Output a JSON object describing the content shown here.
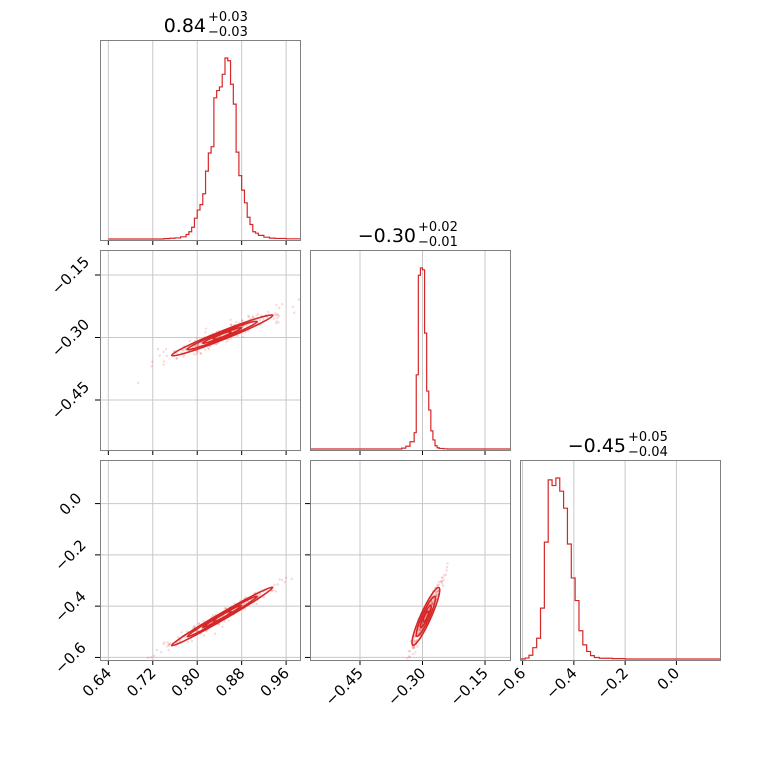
{
  "chart_data": {
    "type": "corner",
    "color": "#d62728",
    "grid": true,
    "params": [
      {
        "median": 0.84,
        "range": [
          0.625,
          0.985
        ],
        "ticks": [
          "0.64",
          "0.72",
          "0.80",
          "0.88",
          "0.96"
        ],
        "tickvals": [
          0.64,
          0.72,
          0.8,
          0.88,
          0.96
        ]
      },
      {
        "median": -0.3,
        "range": [
          -0.57,
          -0.09
        ],
        "ticks": [
          "−0.45",
          "−0.30",
          "−0.15"
        ],
        "tickvals": [
          -0.45,
          -0.3,
          -0.15
        ]
      },
      {
        "median": -0.45,
        "range": [
          -0.61,
          0.17
        ],
        "ticks": [
          "−0.6",
          "−0.4",
          "−0.2",
          "0.0"
        ],
        "tickvals": [
          -0.6,
          -0.4,
          -0.2,
          0.0
        ]
      }
    ],
    "titles": [
      {
        "main": "0.84",
        "plus": "+0.03",
        "minus": "−0.03"
      },
      {
        "main": "−0.30",
        "plus": "+0.02",
        "minus": "−0.01"
      },
      {
        "main": "−0.45",
        "plus": "+0.05",
        "minus": "−0.04"
      }
    ],
    "yticks": {
      "row1": {
        "labels": [
          "−0.15",
          "−0.30",
          "−0.45"
        ],
        "values": [
          -0.15,
          -0.3,
          -0.45
        ]
      },
      "row2": {
        "labels": [
          "0.0",
          "−0.2",
          "−0.4",
          "−0.6"
        ],
        "values": [
          0.0,
          -0.2,
          -0.4,
          -0.6
        ]
      }
    },
    "histograms": [
      {
        "param": 0,
        "bins": [
          0.64,
          0.66,
          0.68,
          0.7,
          0.72,
          0.74,
          0.75,
          0.76,
          0.77,
          0.78,
          0.785,
          0.79,
          0.795,
          0.8,
          0.805,
          0.81,
          0.815,
          0.82,
          0.825,
          0.83,
          0.835,
          0.84,
          0.845,
          0.85,
          0.855,
          0.86,
          0.865,
          0.87,
          0.875,
          0.88,
          0.885,
          0.89,
          0.895,
          0.9,
          0.905,
          0.91,
          0.92,
          0.93,
          0.94,
          0.96,
          0.985
        ],
        "counts": [
          0,
          0,
          0,
          0,
          0,
          2,
          4,
          6,
          12,
          25,
          40,
          65,
          115,
          160,
          190,
          250,
          375,
          475,
          510,
          780,
          820,
          840,
          910,
          1000,
          985,
          855,
          745,
          480,
          350,
          270,
          200,
          120,
          80,
          40,
          32,
          20,
          10,
          5,
          3,
          1
        ]
      },
      {
        "param": 1,
        "bins": [
          -0.57,
          -0.35,
          -0.34,
          -0.33,
          -0.32,
          -0.315,
          -0.31,
          -0.305,
          -0.3,
          -0.295,
          -0.29,
          -0.285,
          -0.28,
          -0.275,
          -0.27,
          -0.265,
          -0.26,
          -0.25,
          -0.24,
          -0.09
        ],
        "counts": [
          0,
          5,
          15,
          40,
          90,
          410,
          960,
          1000,
          990,
          640,
          320,
          215,
          100,
          50,
          18,
          7,
          3,
          1,
          0
        ]
      },
      {
        "param": 2,
        "bins": [
          -0.61,
          -0.59,
          -0.575,
          -0.56,
          -0.545,
          -0.53,
          -0.515,
          -0.5,
          -0.485,
          -0.47,
          -0.455,
          -0.44,
          -0.425,
          -0.41,
          -0.395,
          -0.38,
          -0.365,
          -0.35,
          -0.335,
          -0.32,
          -0.3,
          -0.25,
          -0.2,
          0.17
        ],
        "counts": [
          0,
          5,
          20,
          60,
          110,
          270,
          620,
          950,
          920,
          960,
          890,
          800,
          610,
          430,
          310,
          150,
          75,
          40,
          18,
          8,
          4,
          2,
          0
        ]
      }
    ],
    "scatter_2d": [
      {
        "x": 0,
        "y": 1,
        "relation": "y ≈ -0.30 + 0.53*(x-0.84)",
        "x_span": [
          0.76,
          0.96
        ],
        "y_span": [
          -0.33,
          -0.19
        ]
      },
      {
        "x": 0,
        "y": 2,
        "relation": "y ≈ -0.45 + 1.25*(x-0.84)",
        "x_span": [
          0.76,
          0.96
        ],
        "y_span": [
          -0.56,
          -0.23
        ]
      },
      {
        "x": 1,
        "y": 2,
        "relation": "y ≈ -0.45 + 3.6*(x+0.30)",
        "x_span": [
          -0.33,
          -0.21
        ],
        "y_span": [
          -0.56,
          -0.21
        ]
      }
    ]
  }
}
